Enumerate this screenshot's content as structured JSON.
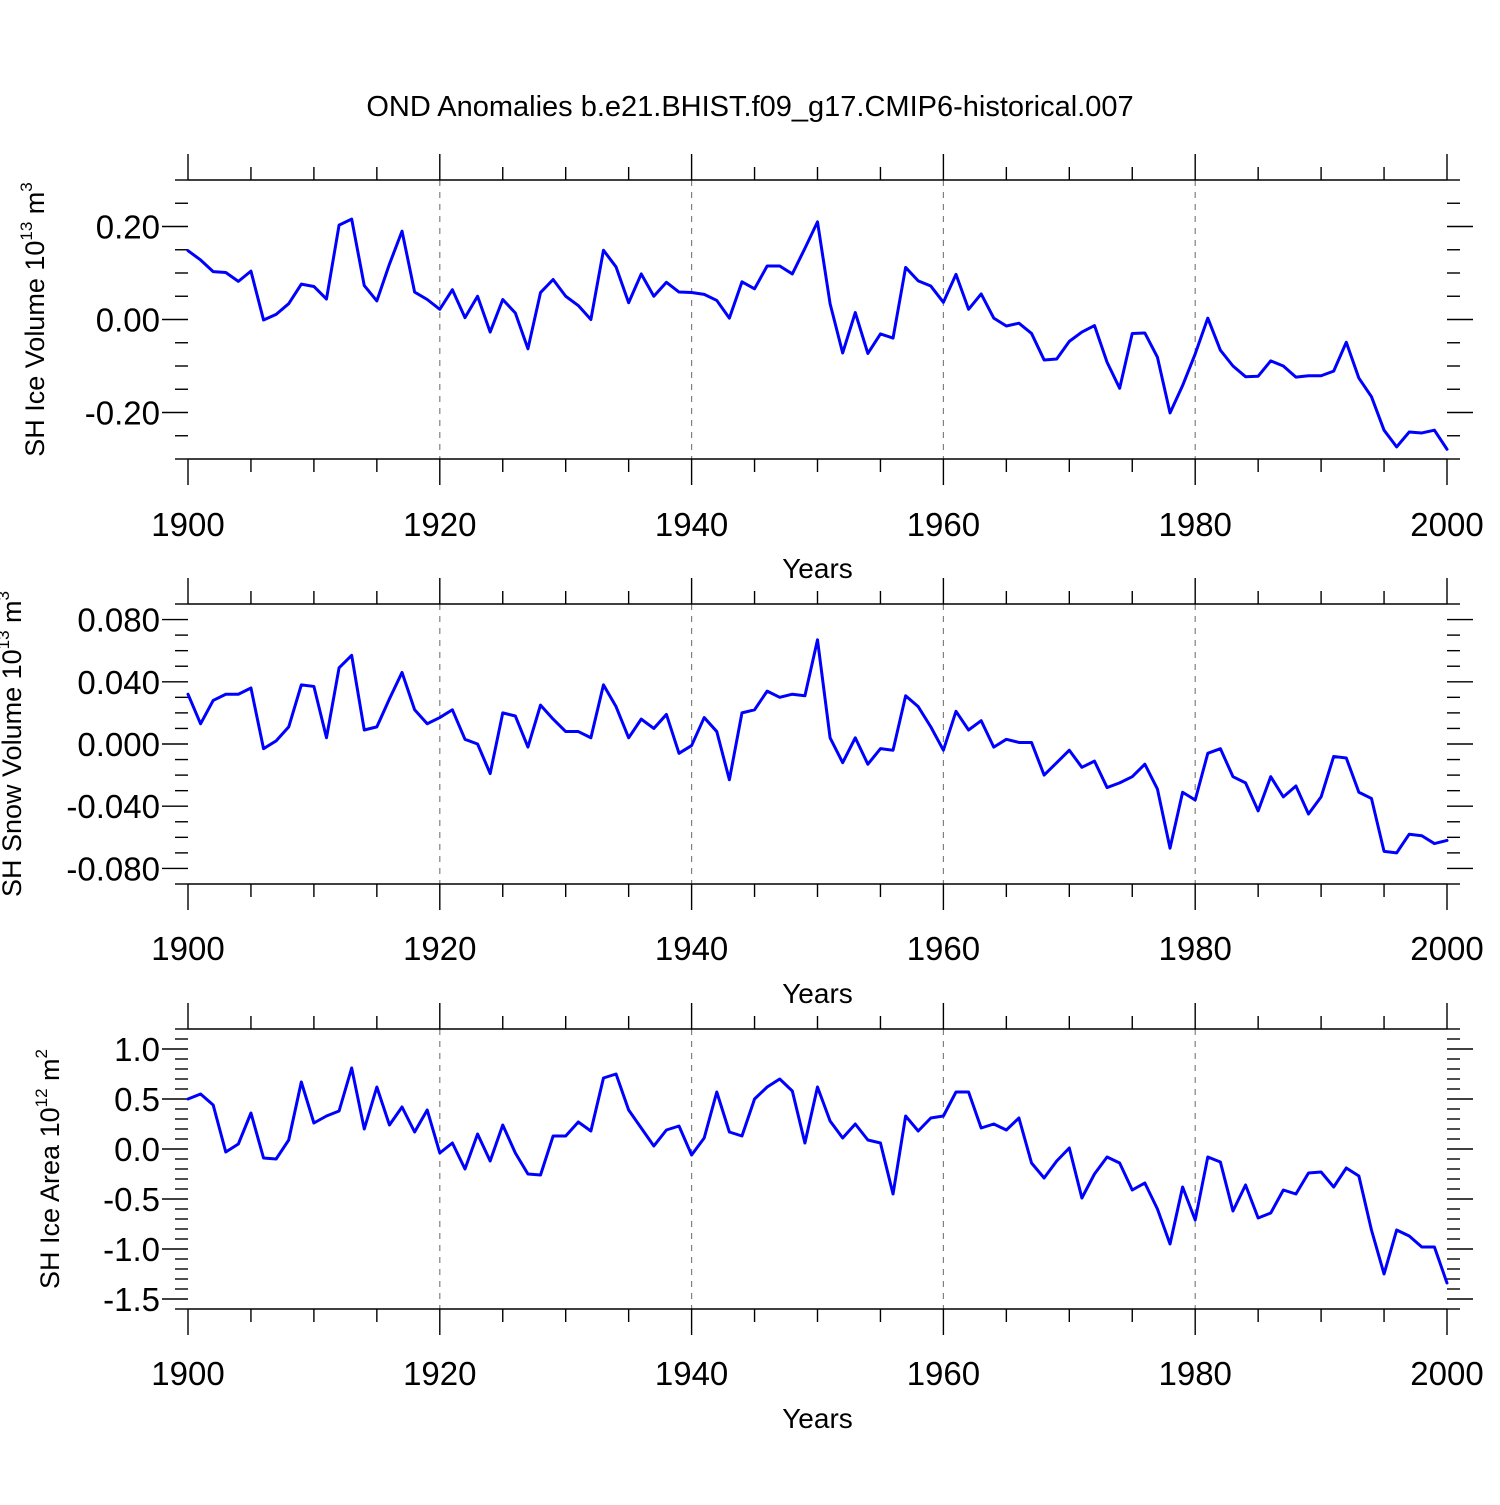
{
  "figure_title": "OND Anomalies b.e21.BHIST.f09_g17.CMIP6-historical.007",
  "colors": {
    "line": "#0000ff",
    "axis": "#000000",
    "grid": "#808080",
    "background": "#ffffff"
  },
  "chart_data": [
    {
      "type": "line",
      "title": "OND Anomalies b.e21.BHIST.f09_g17.CMIP6-historical.007",
      "xlabel": "Years",
      "ylabel_main": "SH Ice Volume 10",
      "ylabel_exp": "13",
      "ylabel_unit": " m",
      "ylabel_unit_exp": "3",
      "xlim": [
        1900,
        2000
      ],
      "ylim": [
        -0.3,
        0.3
      ],
      "xticks": [
        1900,
        1920,
        1940,
        1960,
        1980,
        2000
      ],
      "xtick_labels": [
        "1900",
        "1920",
        "1940",
        "1960",
        "1980",
        "2000"
      ],
      "yticks": [
        -0.2,
        0.0,
        0.2
      ],
      "ytick_labels": [
        "-0.20",
        "0.00",
        "0.20"
      ],
      "yminor_step": 0.05,
      "grid": "vertical dashed at major x ticks",
      "series": [
        {
          "name": "SH Ice Volume",
          "x_start": 1900,
          "values": [
            0.148,
            0.128,
            0.103,
            0.101,
            0.082,
            0.104,
            -0.001,
            0.011,
            0.034,
            0.076,
            0.071,
            0.044,
            0.203,
            0.216,
            0.073,
            0.04,
            0.119,
            0.19,
            0.059,
            0.043,
            0.022,
            0.064,
            0.004,
            0.05,
            -0.027,
            0.043,
            0.014,
            -0.063,
            0.058,
            0.086,
            0.05,
            0.03,
            0.0,
            0.149,
            0.113,
            0.036,
            0.098,
            0.05,
            0.08,
            0.059,
            0.058,
            0.054,
            0.041,
            0.003,
            0.081,
            0.066,
            0.115,
            0.115,
            0.098,
            0.153,
            0.21,
            0.034,
            -0.072,
            0.015,
            -0.073,
            -0.031,
            -0.04,
            0.112,
            0.083,
            0.072,
            0.037,
            0.097,
            0.022,
            0.055,
            0.003,
            -0.014,
            -0.008,
            -0.03,
            -0.087,
            -0.085,
            -0.047,
            -0.027,
            -0.013,
            -0.092,
            -0.148,
            -0.03,
            -0.029,
            -0.081,
            -0.201,
            -0.142,
            -0.074,
            0.003,
            -0.066,
            -0.1,
            -0.123,
            -0.122,
            -0.089,
            -0.1,
            -0.124,
            -0.121,
            -0.121,
            -0.111,
            -0.049,
            -0.126,
            -0.166,
            -0.238,
            -0.274,
            -0.242,
            -0.244,
            -0.238,
            -0.279
          ]
        }
      ]
    },
    {
      "type": "line",
      "xlabel": "Years",
      "ylabel_main": "SH Snow Volume 10",
      "ylabel_exp": "13",
      "ylabel_unit": " m",
      "ylabel_unit_exp": "3",
      "xlim": [
        1900,
        2000
      ],
      "ylim": [
        -0.09,
        0.09
      ],
      "xticks": [
        1900,
        1920,
        1940,
        1960,
        1980,
        2000
      ],
      "xtick_labels": [
        "1900",
        "1920",
        "1940",
        "1960",
        "1980",
        "2000"
      ],
      "yticks": [
        -0.08,
        -0.04,
        0.0,
        0.04,
        0.08
      ],
      "ytick_labels": [
        "-0.080",
        "-0.040",
        "0.000",
        "0.040",
        "0.080"
      ],
      "yminor_step": 0.01,
      "grid": "vertical dashed at major x ticks",
      "series": [
        {
          "name": "SH Snow Volume",
          "x_start": 1900,
          "values": [
            0.032,
            0.013,
            0.028,
            0.032,
            0.032,
            0.036,
            -0.003,
            0.002,
            0.011,
            0.038,
            0.037,
            0.004,
            0.049,
            0.057,
            0.009,
            0.011,
            0.029,
            0.046,
            0.022,
            0.013,
            0.017,
            0.022,
            0.003,
            0.0,
            -0.019,
            0.02,
            0.018,
            -0.002,
            0.025,
            0.016,
            0.008,
            0.008,
            0.004,
            0.038,
            0.024,
            0.004,
            0.016,
            0.01,
            0.019,
            -0.006,
            -0.001,
            0.017,
            0.008,
            -0.023,
            0.02,
            0.022,
            0.034,
            0.03,
            0.032,
            0.031,
            0.067,
            0.004,
            -0.012,
            0.004,
            -0.013,
            -0.003,
            -0.004,
            0.031,
            0.024,
            0.011,
            -0.004,
            0.021,
            0.009,
            0.015,
            -0.002,
            0.003,
            0.001,
            0.001,
            -0.02,
            -0.012,
            -0.004,
            -0.015,
            -0.011,
            -0.028,
            -0.025,
            -0.021,
            -0.013,
            -0.029,
            -0.067,
            -0.031,
            -0.036,
            -0.006,
            -0.003,
            -0.021,
            -0.025,
            -0.043,
            -0.021,
            -0.034,
            -0.027,
            -0.045,
            -0.034,
            -0.008,
            -0.009,
            -0.031,
            -0.035,
            -0.069,
            -0.07,
            -0.058,
            -0.059,
            -0.064,
            -0.062
          ]
        }
      ]
    },
    {
      "type": "line",
      "xlabel": "Years",
      "ylabel_main": "SH Ice Area 10",
      "ylabel_exp": "12",
      "ylabel_unit": " m",
      "ylabel_unit_exp": "2",
      "xlim": [
        1900,
        2000
      ],
      "ylim": [
        -1.6,
        1.2
      ],
      "xticks": [
        1900,
        1920,
        1940,
        1960,
        1980,
        2000
      ],
      "xtick_labels": [
        "1900",
        "1920",
        "1940",
        "1960",
        "1980",
        "2000"
      ],
      "yticks": [
        -1.5,
        -1.0,
        -0.5,
        0.0,
        0.5,
        1.0
      ],
      "ytick_labels": [
        "-1.5",
        "-1.0",
        "-0.5",
        "0.0",
        "0.5",
        "1.0"
      ],
      "yminor_step": 0.1,
      "grid": "vertical dashed at major x ticks",
      "series": [
        {
          "name": "SH Ice Area",
          "x_start": 1900,
          "values": [
            0.5,
            0.55,
            0.44,
            -0.03,
            0.05,
            0.36,
            -0.09,
            -0.1,
            0.09,
            0.67,
            0.26,
            0.33,
            0.38,
            0.81,
            0.2,
            0.62,
            0.24,
            0.42,
            0.17,
            0.39,
            -0.04,
            0.06,
            -0.2,
            0.15,
            -0.12,
            0.24,
            -0.04,
            -0.25,
            -0.26,
            0.13,
            0.13,
            0.27,
            0.18,
            0.71,
            0.75,
            0.39,
            0.21,
            0.03,
            0.19,
            0.23,
            -0.06,
            0.11,
            0.57,
            0.17,
            0.13,
            0.5,
            0.62,
            0.7,
            0.58,
            0.06,
            0.62,
            0.28,
            0.11,
            0.25,
            0.09,
            0.06,
            -0.45,
            0.33,
            0.18,
            0.31,
            0.33,
            0.57,
            0.57,
            0.21,
            0.25,
            0.19,
            0.31,
            -0.14,
            -0.29,
            -0.12,
            0.01,
            -0.49,
            -0.25,
            -0.08,
            -0.14,
            -0.41,
            -0.34,
            -0.6,
            -0.95,
            -0.38,
            -0.71,
            -0.08,
            -0.13,
            -0.62,
            -0.36,
            -0.69,
            -0.64,
            -0.41,
            -0.45,
            -0.24,
            -0.23,
            -0.38,
            -0.19,
            -0.27,
            -0.81,
            -1.25,
            -0.81,
            -0.87,
            -0.98,
            -0.98,
            -1.34
          ]
        }
      ]
    }
  ]
}
